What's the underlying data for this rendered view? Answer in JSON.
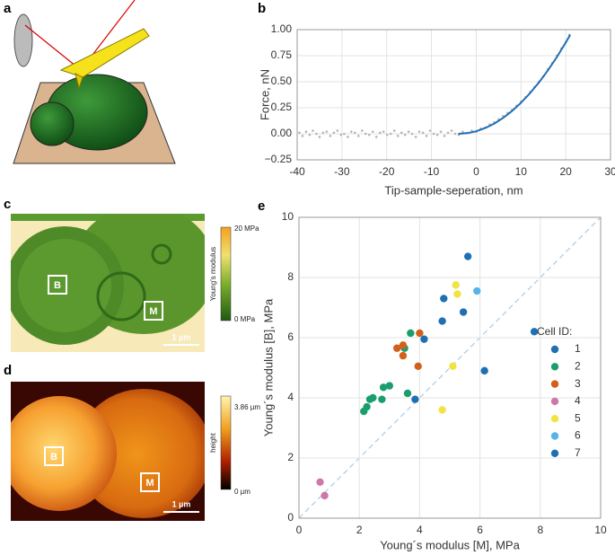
{
  "panel_a": {
    "label": "a"
  },
  "chart_data": [
    {
      "label": "b",
      "type": "scatter",
      "xlabel": "Tip-sample-seperation, nm",
      "ylabel": "Force, nN",
      "xlim": [
        -40,
        30
      ],
      "xticks": [
        -40,
        -30,
        -20,
        -10,
        0,
        10,
        20,
        30
      ],
      "ylim": [
        -0.25,
        1.0
      ],
      "yticks": [
        {
          "value": -0.25,
          "label": "−0.25"
        },
        {
          "value": 0,
          "label": "0.00"
        },
        {
          "value": 0.25,
          "label": "0.25"
        },
        {
          "value": 0.5,
          "label": "0.50"
        },
        {
          "value": 0.75,
          "label": "0.75"
        },
        {
          "value": 1.0,
          "label": "1.00"
        }
      ],
      "grid": true,
      "series": [
        {
          "type": "scatter",
          "color": "#b5b5b5",
          "x": [
            -39.5,
            -38.8,
            -38,
            -37.2,
            -36.5,
            -35.7,
            -35,
            -34.2,
            -33.4,
            -32.6,
            -31.8,
            -31,
            -30.2,
            -29.5,
            -28.7,
            -27.9,
            -27.1,
            -26.3,
            -25.5,
            -24.7,
            -23.9,
            -23.1,
            -22.3,
            -21.5,
            -20.7,
            -19.9,
            -19.1,
            -18.3,
            -17.5,
            -16.7,
            -15.9,
            -15.1,
            -14.3,
            -13.5,
            -12.7,
            -11.9,
            -11.1,
            -10.3,
            -9.5,
            -8.7,
            -7.9,
            -7.1,
            -6.3,
            -5.5,
            -4.7,
            -3.9,
            -3,
            -2,
            -1,
            0,
            1,
            2,
            3,
            4,
            5,
            6,
            7,
            8,
            9,
            10,
            11,
            12,
            13,
            14,
            15,
            16,
            17,
            18,
            19,
            20,
            20.8
          ],
          "values": [
            0.01,
            -0.02,
            0.02,
            -0.01,
            0.03,
            0,
            -0.03,
            0.01,
            0.02,
            -0.02,
            0.01,
            0.03,
            -0.01,
            0,
            -0.03,
            0.02,
            0.01,
            -0.02,
            0.03,
            0,
            -0.01,
            0.02,
            -0.03,
            0.01,
            0.02,
            -0.01,
            0,
            0.03,
            -0.02,
            0.01,
            -0.01,
            0.02,
            0,
            -0.03,
            0.02,
            0.01,
            -0.02,
            0.03,
            0,
            -0.01,
            0.02,
            -0.02,
            0.01,
            0.03,
            0,
            -0.01,
            0.02,
            0.01,
            0.03,
            0.02,
            0.05,
            0.06,
            0.09,
            0.11,
            0.14,
            0.17,
            0.2,
            0.23,
            0.27,
            0.31,
            0.35,
            0.4,
            0.45,
            0.5,
            0.55,
            0.62,
            0.68,
            0.75,
            0.82,
            0.88,
            0.95
          ]
        },
        {
          "type": "line",
          "color": "#1f6fb4",
          "x": [
            -4,
            -2,
            0,
            2,
            4,
            6,
            8,
            10,
            12,
            14,
            16,
            18,
            20,
            21
          ],
          "values": [
            0,
            0.006,
            0.024,
            0.055,
            0.097,
            0.152,
            0.219,
            0.298,
            0.389,
            0.492,
            0.608,
            0.736,
            0.876,
            0.95
          ]
        }
      ]
    },
    {
      "label": "e",
      "type": "scatter",
      "xlabel": "Young´s modulus [M], MPa",
      "ylabel": "Young´s modulus [B], MPa",
      "xlim": [
        0,
        10
      ],
      "xticks": [
        0,
        2,
        4,
        6,
        8,
        10
      ],
      "ylim": [
        0,
        10
      ],
      "yticks": [
        0,
        2,
        4,
        6,
        8,
        10
      ],
      "grid": true,
      "legend": "right",
      "legend_title": "Cell ID:",
      "series": [
        {
          "name": "1",
          "color": "#1f6fb4",
          "x": [
            5.6,
            4.8,
            4.75,
            5.45
          ],
          "values": [
            8.7,
            7.3,
            6.55,
            6.85
          ]
        },
        {
          "name": "2",
          "color": "#1a9e6e",
          "x": [
            2.15,
            2.25,
            2.35,
            2.45,
            2.75,
            2.8,
            3.0,
            3.5,
            3.7,
            3.6
          ],
          "values": [
            3.55,
            3.7,
            3.95,
            4.0,
            3.95,
            4.35,
            4.4,
            5.65,
            6.15,
            4.15
          ]
        },
        {
          "name": "3",
          "color": "#d2601a",
          "x": [
            3.25,
            3.45,
            3.45,
            4.0,
            3.95
          ],
          "values": [
            5.65,
            5.75,
            5.4,
            6.15,
            5.05
          ]
        },
        {
          "name": "4",
          "color": "#cc79a7",
          "x": [
            0.7,
            0.85
          ],
          "values": [
            1.2,
            0.75
          ]
        },
        {
          "name": "5",
          "color": "#f0e442",
          "x": [
            5.2,
            5.25,
            5.1,
            4.75
          ],
          "values": [
            7.75,
            7.45,
            5.05,
            3.6
          ]
        },
        {
          "name": "6",
          "color": "#56b4e9",
          "x": [
            5.9
          ],
          "values": [
            7.55
          ]
        },
        {
          "name": "7",
          "color": "#1f6fb4",
          "x": [
            4.15,
            6.15,
            3.85,
            7.8
          ],
          "values": [
            5.95,
            4.9,
            3.95,
            6.2
          ]
        }
      ]
    }
  ],
  "images": [
    {
      "label": "c",
      "colorbar_title": "Young's modulus",
      "colorbar_max": "20 MPa",
      "colorbar_min": "0 MPa",
      "regions": [
        "B",
        "M"
      ],
      "scale_bar": "1 µm"
    },
    {
      "label": "d",
      "colorbar_title": "height",
      "colorbar_max": "3.86 µm",
      "colorbar_min": "0 µm",
      "regions": [
        "B",
        "M"
      ],
      "scale_bar": "1 µm"
    }
  ]
}
